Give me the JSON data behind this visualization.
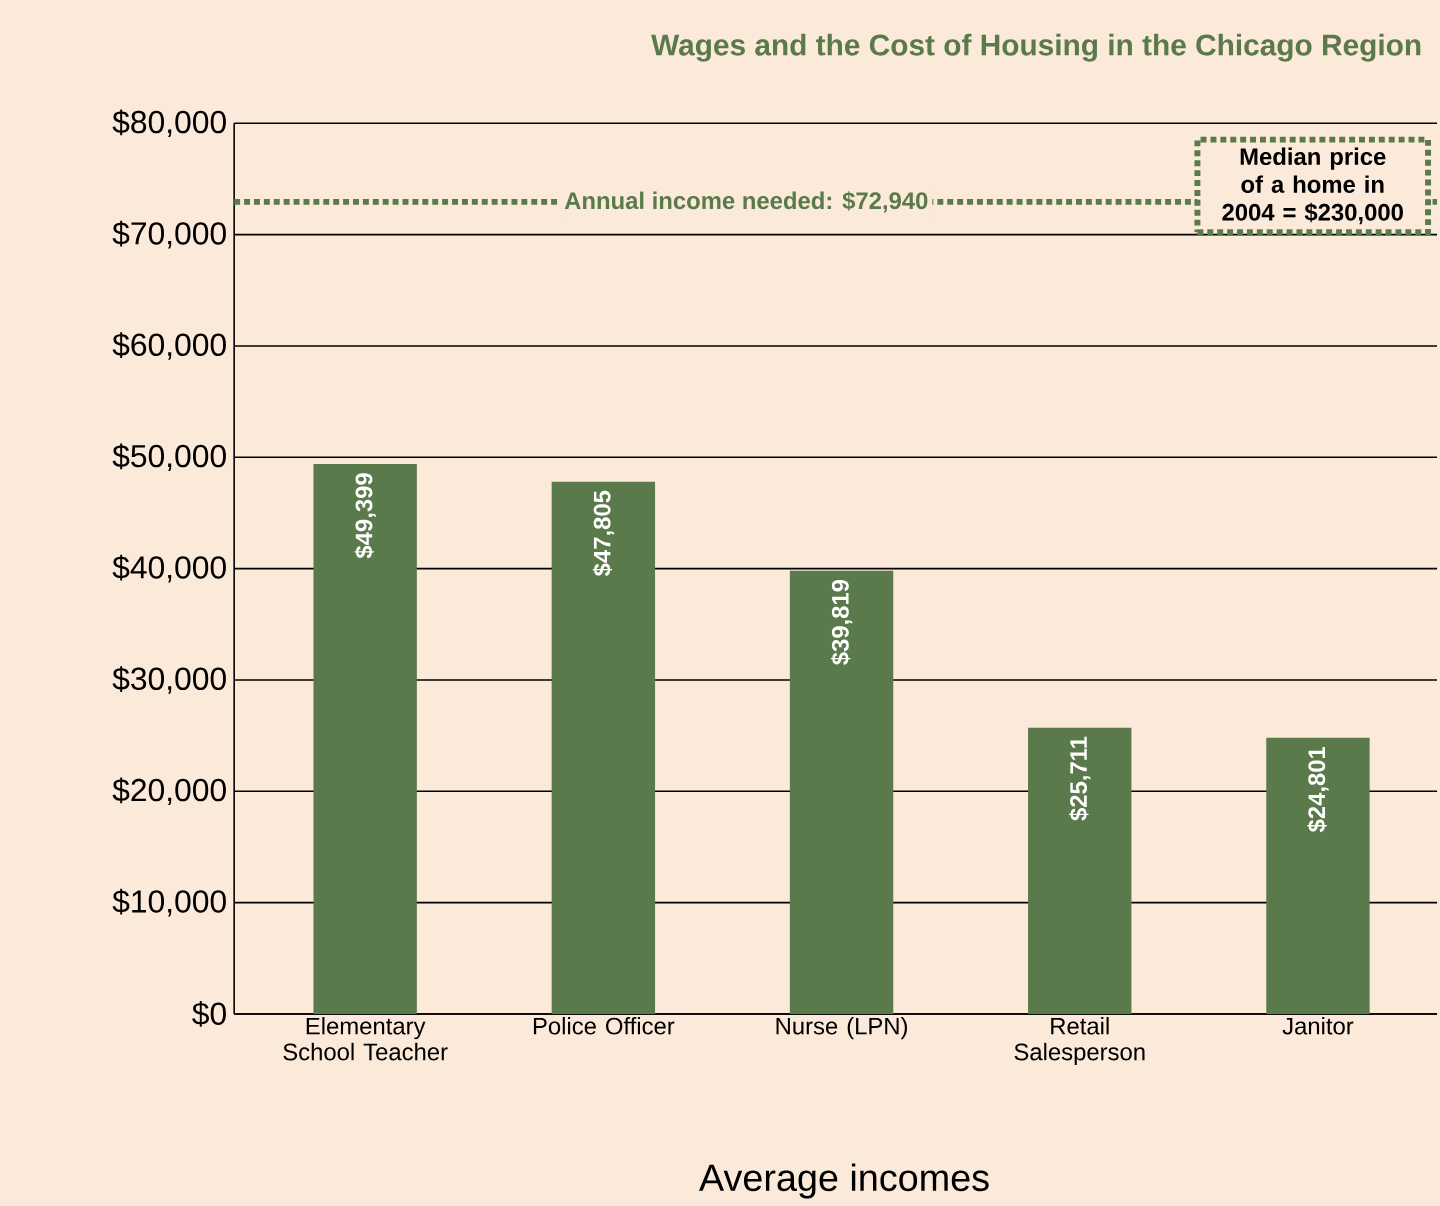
{
  "chart_data": {
    "type": "bar",
    "title": "Wages and the Cost of Housing in the Chicago Region",
    "xlabel": "Average incomes",
    "categories": [
      "Elementary School Teacher",
      "Police Officer",
      "Nurse (LPN)",
      "Retail Salesperson",
      "Janitor"
    ],
    "values": [
      49399,
      47805,
      39819,
      25711,
      24801
    ],
    "value_labels": [
      "$49,399",
      "$47,805",
      "$39,819",
      "$25,711",
      "$24,801"
    ],
    "color": "#5b7a4b",
    "ylim": [
      0,
      80000
    ],
    "yticks": [
      {
        "value": 0,
        "label": "$0"
      },
      {
        "value": 10000,
        "label": "$10,000"
      },
      {
        "value": 20000,
        "label": "$20,000"
      },
      {
        "value": 30000,
        "label": "$30,000"
      },
      {
        "value": 40000,
        "label": "$40,000"
      },
      {
        "value": 50000,
        "label": "$50,000"
      },
      {
        "value": 60000,
        "label": "$60,000"
      },
      {
        "value": 70000,
        "label": "$70,000"
      },
      {
        "value": 80000,
        "label": "$80,000"
      }
    ],
    "grid": "y",
    "ref_lines": [
      {
        "axis": "y",
        "value": 72940,
        "label": "Annual income needed: $72,940",
        "color": "#5b7a4b",
        "line_style": "dotted"
      }
    ],
    "annotations": [
      "Median price of a home in 2004 = $230,000"
    ]
  }
}
